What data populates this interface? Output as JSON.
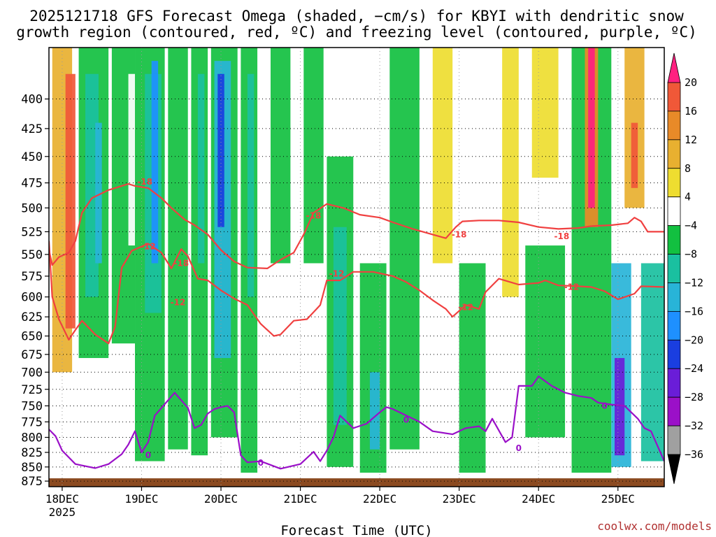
{
  "title": {
    "line1": "2025121718 GFS Forecast Omega (shaded, −cm/s) for KBYI with dendritic snow",
    "line2": "growth region (contoured, red, ºC) and freezing level (contoured, purple, ºC)"
  },
  "credit": "coolwx.com/models",
  "chart_data": {
    "type": "heatmap",
    "xlabel": "Forecast Time (UTC)",
    "ylabel": "",
    "x_range_hours": [
      -4,
      182
    ],
    "y_range_hpa": [
      360,
      885
    ],
    "y_scale": "log-pressure",
    "y_ticks": [
      400,
      425,
      450,
      475,
      500,
      525,
      550,
      575,
      600,
      625,
      650,
      675,
      700,
      725,
      750,
      775,
      800,
      825,
      850,
      875
    ],
    "x_ticks": [
      {
        "hour": 0,
        "label": "18DEC",
        "sublabel": "2025"
      },
      {
        "hour": 24,
        "label": "19DEC"
      },
      {
        "hour": 48,
        "label": "20DEC"
      },
      {
        "hour": 72,
        "label": "21DEC"
      },
      {
        "hour": 96,
        "label": "22DEC"
      },
      {
        "hour": 120,
        "label": "23DEC"
      },
      {
        "hour": 144,
        "label": "24DEC"
      },
      {
        "hour": 168,
        "label": "25DEC"
      }
    ],
    "grid": "dotted",
    "colorbar": {
      "position": "right",
      "unit": "-cm/s",
      "levels": [
        -36,
        -32,
        -28,
        -24,
        -20,
        -16,
        -12,
        -8,
        -4,
        4,
        8,
        12,
        16,
        20
      ],
      "colors": [
        "#000000",
        "#a0a0a0",
        "#9b10c8",
        "#6a1dd8",
        "#1a3ee0",
        "#1e90ff",
        "#28b4d8",
        "#1ac0a0",
        "#12c040",
        "#ffffff",
        "#eedd30",
        "#e8b030",
        "#e88a28",
        "#f05838",
        "#ff2080"
      ]
    },
    "omega_bands": [
      {
        "t0": -3,
        "t1": 3,
        "p0": 360,
        "p1": 700,
        "level": 8
      },
      {
        "t0": 1,
        "t1": 4,
        "p0": 380,
        "p1": 640,
        "level": 16
      },
      {
        "t0": 5,
        "t1": 14,
        "p0": 360,
        "p1": 680,
        "level": -8
      },
      {
        "t0": 7,
        "t1": 11,
        "p0": 380,
        "p1": 600,
        "level": -12
      },
      {
        "t0": 10,
        "t1": 12,
        "p0": 420,
        "p1": 560,
        "level": -16
      },
      {
        "t0": 15,
        "t1": 22,
        "p0": 360,
        "p1": 660,
        "level": -8
      },
      {
        "t0": 20,
        "t1": 22,
        "p0": 380,
        "p1": 540,
        "level": -4
      },
      {
        "t0": 22,
        "t1": 31,
        "p0": 360,
        "p1": 840,
        "level": -8
      },
      {
        "t0": 25,
        "t1": 30,
        "p0": 380,
        "p1": 620,
        "level": -12
      },
      {
        "t0": 27,
        "t1": 29,
        "p0": 370,
        "p1": 560,
        "level": -20
      },
      {
        "t0": 32,
        "t1": 38,
        "p0": 360,
        "p1": 820,
        "level": -8
      },
      {
        "t0": 39,
        "t1": 44,
        "p0": 360,
        "p1": 830,
        "level": -8
      },
      {
        "t0": 41,
        "t1": 43,
        "p0": 380,
        "p1": 560,
        "level": -12
      },
      {
        "t0": 45,
        "t1": 53,
        "p0": 360,
        "p1": 800,
        "level": -8
      },
      {
        "t0": 46,
        "t1": 51,
        "p0": 370,
        "p1": 680,
        "level": -16
      },
      {
        "t0": 47,
        "t1": 49,
        "p0": 380,
        "p1": 520,
        "level": -24
      },
      {
        "t0": 54,
        "t1": 59,
        "p0": 360,
        "p1": 860,
        "level": -8
      },
      {
        "t0": 56,
        "t1": 58,
        "p0": 380,
        "p1": 600,
        "level": -12
      },
      {
        "t0": 63,
        "t1": 69,
        "p0": 360,
        "p1": 560,
        "level": -8
      },
      {
        "t0": 73,
        "t1": 79,
        "p0": 360,
        "p1": 560,
        "level": -8
      },
      {
        "t0": 80,
        "t1": 88,
        "p0": 450,
        "p1": 850,
        "level": -8
      },
      {
        "t0": 82,
        "t1": 86,
        "p0": 520,
        "p1": 780,
        "level": -12
      },
      {
        "t0": 90,
        "t1": 98,
        "p0": 560,
        "p1": 860,
        "level": -8
      },
      {
        "t0": 93,
        "t1": 96,
        "p0": 700,
        "p1": 820,
        "level": -16
      },
      {
        "t0": 99,
        "t1": 108,
        "p0": 360,
        "p1": 820,
        "level": -8
      },
      {
        "t0": 112,
        "t1": 118,
        "p0": 360,
        "p1": 560,
        "level": 4
      },
      {
        "t0": 120,
        "t1": 128,
        "p0": 560,
        "p1": 860,
        "level": -8
      },
      {
        "t0": 133,
        "t1": 138,
        "p0": 360,
        "p1": 600,
        "level": 4
      },
      {
        "t0": 140,
        "t1": 152,
        "p0": 540,
        "p1": 800,
        "level": -8
      },
      {
        "t0": 142,
        "t1": 150,
        "p0": 360,
        "p1": 470,
        "level": 4
      },
      {
        "t0": 154,
        "t1": 166,
        "p0": 360,
        "p1": 860,
        "level": -8
      },
      {
        "t0": 158,
        "t1": 162,
        "p0": 360,
        "p1": 520,
        "level": 12
      },
      {
        "t0": 159,
        "t1": 161,
        "p0": 360,
        "p1": 500,
        "level": 20
      },
      {
        "t0": 166,
        "t1": 172,
        "p0": 560,
        "p1": 850,
        "level": -16
      },
      {
        "t0": 167,
        "t1": 170,
        "p0": 680,
        "p1": 830,
        "level": -28
      },
      {
        "t0": 170,
        "t1": 176,
        "p0": 360,
        "p1": 500,
        "level": 8
      },
      {
        "t0": 172,
        "t1": 174,
        "p0": 420,
        "p1": 480,
        "level": 16
      },
      {
        "t0": 175,
        "t1": 182,
        "p0": 560,
        "p1": 840,
        "level": -12
      }
    ],
    "contours": [
      {
        "label": "-18",
        "color": "#f04040",
        "points": [
          [
            -4,
            545
          ],
          [
            -3,
            562
          ],
          [
            -1,
            553
          ],
          [
            2,
            548
          ],
          [
            4,
            535
          ],
          [
            6,
            505
          ],
          [
            9,
            490
          ],
          [
            14,
            482
          ],
          [
            18,
            478
          ],
          [
            20,
            476
          ],
          [
            22,
            478
          ],
          [
            26,
            480
          ],
          [
            30,
            490
          ],
          [
            33,
            500
          ],
          [
            37,
            512
          ],
          [
            40,
            518
          ],
          [
            44,
            528
          ],
          [
            48,
            545
          ],
          [
            52,
            558
          ],
          [
            56,
            565
          ],
          [
            62,
            566
          ],
          [
            66,
            556
          ],
          [
            70,
            548
          ],
          [
            73,
            528
          ],
          [
            76,
            505
          ],
          [
            80,
            496
          ],
          [
            85,
            500
          ],
          [
            90,
            507
          ],
          [
            96,
            510
          ],
          [
            100,
            515
          ],
          [
            106,
            522
          ],
          [
            112,
            528
          ],
          [
            116,
            532
          ],
          [
            119,
            520
          ],
          [
            121,
            514
          ],
          [
            126,
            513
          ],
          [
            132,
            513
          ],
          [
            138,
            515
          ],
          [
            144,
            520
          ],
          [
            150,
            522
          ],
          [
            156,
            521
          ],
          [
            160,
            519
          ],
          [
            166,
            518
          ],
          [
            171,
            516
          ],
          [
            173,
            510
          ],
          [
            175,
            514
          ],
          [
            177,
            525
          ],
          [
            182,
            525
          ]
        ],
        "labels_at": [
          [
            25,
            474
          ],
          [
            36,
            560
          ],
          [
            76,
            508
          ],
          [
            120,
            528
          ],
          [
            151,
            530
          ]
        ]
      },
      {
        "label": "-12",
        "color": "#f04040",
        "points": [
          [
            -4,
            535
          ],
          [
            -3,
            600
          ],
          [
            -1,
            628
          ],
          [
            2,
            655
          ],
          [
            4,
            642
          ],
          [
            6,
            630
          ],
          [
            10,
            648
          ],
          [
            14,
            660
          ],
          [
            16,
            638
          ],
          [
            18,
            565
          ],
          [
            21,
            546
          ],
          [
            26,
            538
          ],
          [
            30,
            548
          ],
          [
            33,
            566
          ],
          [
            36,
            544
          ],
          [
            38,
            552
          ],
          [
            41,
            578
          ],
          [
            44,
            580
          ],
          [
            48,
            592
          ],
          [
            52,
            602
          ],
          [
            56,
            610
          ],
          [
            60,
            634
          ],
          [
            64,
            650
          ],
          [
            66,
            648
          ],
          [
            70,
            630
          ],
          [
            74,
            628
          ],
          [
            78,
            610
          ],
          [
            80,
            580
          ],
          [
            84,
            580
          ],
          [
            88,
            570
          ],
          [
            94,
            570
          ],
          [
            100,
            575
          ],
          [
            104,
            582
          ],
          [
            108,
            592
          ],
          [
            112,
            604
          ],
          [
            116,
            615
          ],
          [
            118,
            625
          ],
          [
            122,
            610
          ],
          [
            126,
            615
          ],
          [
            128,
            594
          ],
          [
            132,
            578
          ],
          [
            138,
            585
          ],
          [
            144,
            583
          ],
          [
            146,
            580
          ],
          [
            150,
            586
          ],
          [
            156,
            587
          ],
          [
            160,
            588
          ],
          [
            164,
            593
          ],
          [
            168,
            603
          ],
          [
            173,
            596
          ],
          [
            175,
            587
          ],
          [
            182,
            588
          ]
        ],
        "labels_at": [
          [
            35,
            607
          ],
          [
            26,
            541
          ],
          [
            122,
            613
          ],
          [
            154,
            588
          ],
          [
            83,
            572
          ]
        ]
      },
      {
        "label": "0",
        "color": "#9a10c8",
        "points": [
          [
            -4,
            787
          ],
          [
            -2,
            798
          ],
          [
            0,
            822
          ],
          [
            4,
            845
          ],
          [
            10,
            852
          ],
          [
            14,
            845
          ],
          [
            18,
            828
          ],
          [
            20,
            812
          ],
          [
            22,
            790
          ],
          [
            24,
            825
          ],
          [
            26,
            808
          ],
          [
            28,
            765
          ],
          [
            34,
            730
          ],
          [
            38,
            753
          ],
          [
            40,
            785
          ],
          [
            42,
            780
          ],
          [
            44,
            762
          ],
          [
            46,
            755
          ],
          [
            48,
            752
          ],
          [
            50,
            750
          ],
          [
            52,
            760
          ],
          [
            54,
            830
          ],
          [
            56,
            842
          ],
          [
            60,
            840
          ],
          [
            66,
            853
          ],
          [
            72,
            845
          ],
          [
            76,
            824
          ],
          [
            78,
            840
          ],
          [
            80,
            822
          ],
          [
            82,
            800
          ],
          [
            84,
            765
          ],
          [
            86,
            775
          ],
          [
            88,
            785
          ],
          [
            92,
            778
          ],
          [
            96,
            760
          ],
          [
            98,
            752
          ],
          [
            100,
            755
          ],
          [
            104,
            765
          ],
          [
            108,
            775
          ],
          [
            112,
            790
          ],
          [
            118,
            795
          ],
          [
            122,
            785
          ],
          [
            126,
            782
          ],
          [
            128,
            790
          ],
          [
            130,
            770
          ],
          [
            134,
            808
          ],
          [
            136,
            800
          ],
          [
            138,
            720
          ],
          [
            142,
            720
          ],
          [
            144,
            706
          ],
          [
            148,
            720
          ],
          [
            152,
            730
          ],
          [
            156,
            735
          ],
          [
            160,
            738
          ],
          [
            162,
            745
          ],
          [
            166,
            748
          ],
          [
            170,
            750
          ],
          [
            174,
            770
          ],
          [
            176,
            785
          ],
          [
            178,
            790
          ],
          [
            182,
            840
          ]
        ],
        "labels_at": [
          [
            26,
            830
          ],
          [
            60,
            843
          ],
          [
            104,
            772
          ],
          [
            164,
            750
          ],
          [
            138,
            818
          ]
        ]
      }
    ],
    "terrain": {
      "color": "#8b4a20",
      "top_hpa": 870
    }
  }
}
